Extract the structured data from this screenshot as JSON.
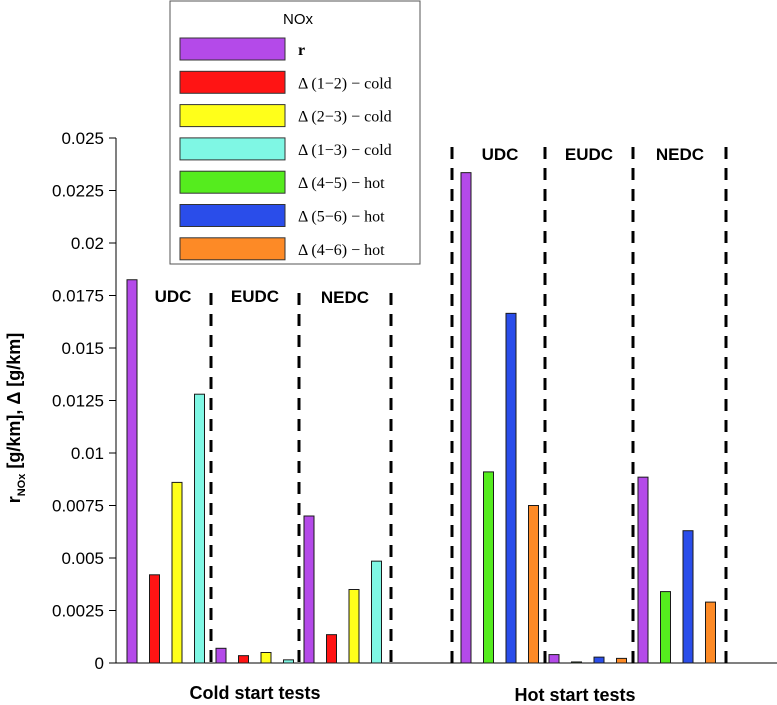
{
  "chart_data": {
    "type": "bar",
    "ylabel": {
      "main": "r",
      "sub": "NOx",
      "rest": " [g/km], Δ [g/km]"
    },
    "ylim": [
      0,
      0.025
    ],
    "yticks": [
      0,
      0.0025,
      0.005,
      0.0075,
      0.01,
      0.0125,
      0.015,
      0.0175,
      0.02,
      0.0225,
      0.025
    ],
    "ytick_labels": [
      "0",
      "0.0025",
      "0.005",
      "0.0075",
      "0.01",
      "0.0125",
      "0.015",
      "0.0175",
      "0.02",
      "0.0225",
      "0.025"
    ],
    "legend": {
      "title": "NOx",
      "position": "top-left",
      "entries": [
        {
          "key": "r",
          "label": "r",
          "color": "#b44ae9"
        },
        {
          "key": "d12c",
          "label": "Δ (1−2) − cold",
          "color": "#ff1414"
        },
        {
          "key": "d23c",
          "label": "Δ (2−3) − cold",
          "color": "#ffff1a"
        },
        {
          "key": "d13c",
          "label": "Δ (1−3) − cold",
          "color": "#7ff7e4"
        },
        {
          "key": "d45h",
          "label": "Δ (4−5) − hot",
          "color": "#55ec1e"
        },
        {
          "key": "d56h",
          "label": "Δ (5−6) − hot",
          "color": "#2a4dea"
        },
        {
          "key": "d46h",
          "label": "Δ (4−6) − hot",
          "color": "#fd8a26"
        }
      ]
    },
    "groups": [
      {
        "name": "Cold start tests",
        "segments": [
          {
            "label": "UDC",
            "bars": [
              {
                "series": "r",
                "value": 0.01825
              },
              {
                "series": "d12c",
                "value": 0.0042
              },
              {
                "series": "d23c",
                "value": 0.0086
              },
              {
                "series": "d13c",
                "value": 0.0128
              }
            ]
          },
          {
            "label": "EUDC",
            "bars": [
              {
                "series": "r",
                "value": 0.0007
              },
              {
                "series": "d12c",
                "value": 0.00035
              },
              {
                "series": "d23c",
                "value": 0.0005
              },
              {
                "series": "d13c",
                "value": 0.00015
              }
            ]
          },
          {
            "label": "NEDC",
            "bars": [
              {
                "series": "r",
                "value": 0.007
              },
              {
                "series": "d12c",
                "value": 0.00135
              },
              {
                "series": "d23c",
                "value": 0.0035
              },
              {
                "series": "d13c",
                "value": 0.00485
              }
            ]
          }
        ]
      },
      {
        "name": "Hot start tests",
        "segments": [
          {
            "label": "UDC",
            "bars": [
              {
                "series": "r",
                "value": 0.02335
              },
              {
                "series": "d45h",
                "value": 0.0091
              },
              {
                "series": "d56h",
                "value": 0.01665
              },
              {
                "series": "d46h",
                "value": 0.0075
              }
            ]
          },
          {
            "label": "EUDC",
            "bars": [
              {
                "series": "r",
                "value": 0.0004
              },
              {
                "series": "d45h",
                "value": 5e-05
              },
              {
                "series": "d56h",
                "value": 0.00028
              },
              {
                "series": "d46h",
                "value": 0.00022
              }
            ]
          },
          {
            "label": "NEDC",
            "bars": [
              {
                "series": "r",
                "value": 0.00885
              },
              {
                "series": "d45h",
                "value": 0.0034
              },
              {
                "series": "d56h",
                "value": 0.0063
              },
              {
                "series": "d46h",
                "value": 0.0029
              }
            ]
          }
        ]
      }
    ]
  }
}
